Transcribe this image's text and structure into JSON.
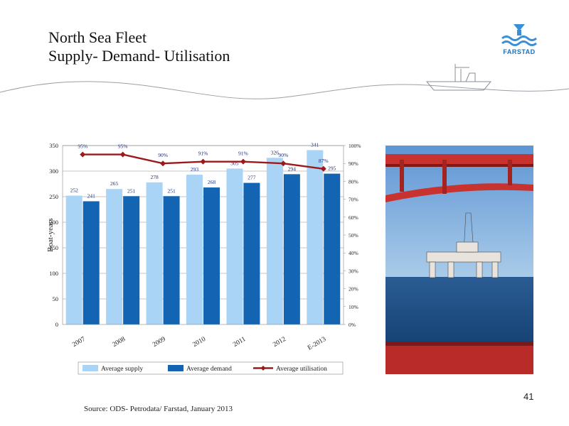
{
  "header": {
    "title_line1": "North Sea Fleet",
    "title_line2": "Supply- Demand- Utilisation",
    "logo_text": "FARSTAD",
    "logo_icon": "farstad-waves-logo"
  },
  "colors": {
    "supply": "#a9d4f5",
    "demand": "#1464b4",
    "utilisation": "#9c1a1a",
    "label": "#1f2f7a"
  },
  "chart_data": {
    "type": "bar",
    "categories": [
      "2007",
      "2008",
      "2009",
      "2010",
      "2011",
      "2012",
      "E-2013"
    ],
    "series": [
      {
        "name": "Average supply",
        "type": "bar",
        "axis": "left",
        "values": [
          252,
          265,
          278,
          293,
          305,
          326,
          341
        ]
      },
      {
        "name": "Average demand",
        "type": "bar",
        "axis": "left",
        "values": [
          241,
          251,
          251,
          268,
          277,
          294,
          295
        ]
      },
      {
        "name": "Average utilisation",
        "type": "line",
        "axis": "right",
        "values": [
          95,
          95,
          90,
          91,
          91,
          90,
          87
        ]
      }
    ],
    "ylabel": "Boat-years",
    "ylim": [
      0,
      350
    ],
    "yticks": [
      "0",
      "50",
      "100",
      "150",
      "200",
      "250",
      "300",
      "350"
    ],
    "y2lim": [
      0,
      100
    ],
    "y2ticks": [
      "0%",
      "10%",
      "20%",
      "30%",
      "40%",
      "50%",
      "60%",
      "70%",
      "80%",
      "90%",
      "100%"
    ],
    "y2_value_suffix": "%",
    "grid": true,
    "legend_position": "bottom"
  },
  "photo": {
    "icon": "offshore-rig-photo"
  },
  "footer": {
    "source": "Source: ODS- Petrodata/ Farstad, January 2013",
    "page_number": "41"
  }
}
